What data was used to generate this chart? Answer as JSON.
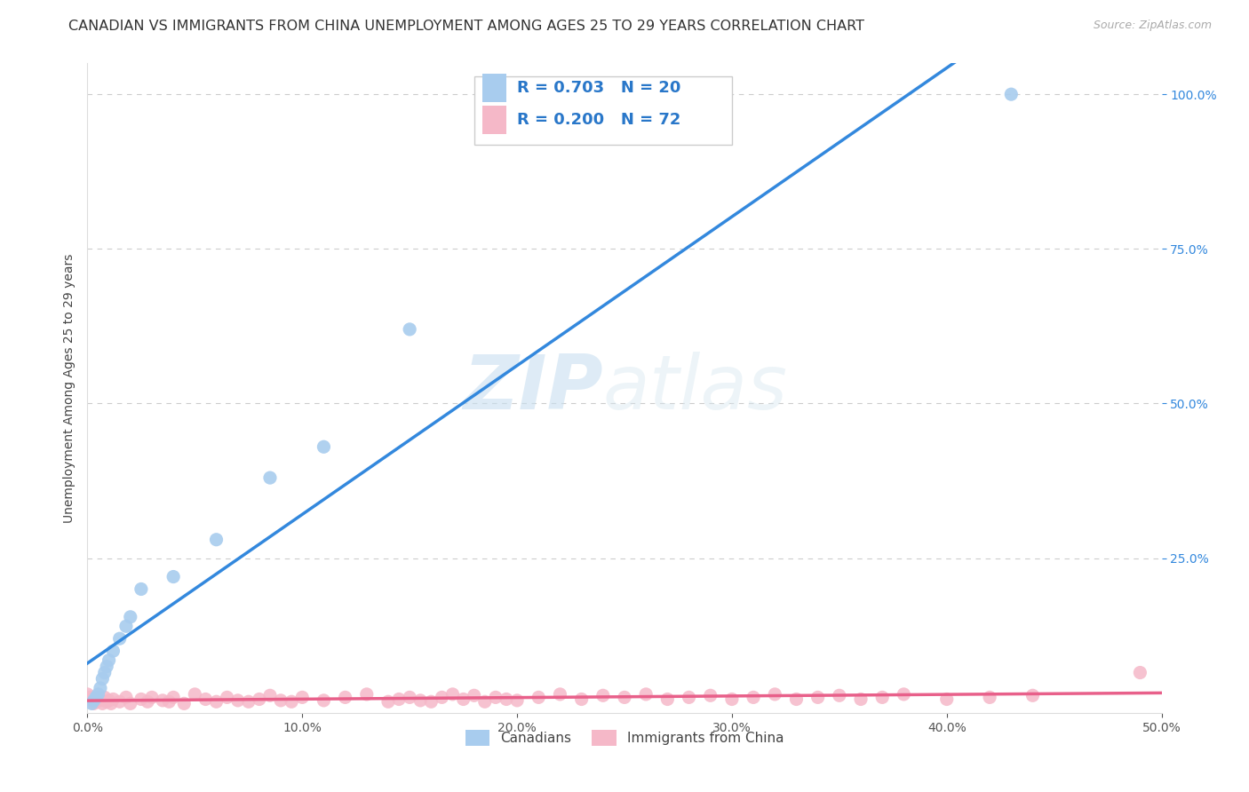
{
  "title": "CANADIAN VS IMMIGRANTS FROM CHINA UNEMPLOYMENT AMONG AGES 25 TO 29 YEARS CORRELATION CHART",
  "source": "Source: ZipAtlas.com",
  "ylabel": "Unemployment Among Ages 25 to 29 years",
  "xlim": [
    0.0,
    0.5
  ],
  "ylim": [
    0.0,
    1.05
  ],
  "xtick_vals": [
    0.0,
    0.1,
    0.2,
    0.3,
    0.4,
    0.5
  ],
  "ytick_vals": [
    0.25,
    0.5,
    0.75,
    1.0
  ],
  "canadians_x": [
    0.002,
    0.003,
    0.004,
    0.005,
    0.006,
    0.007,
    0.008,
    0.009,
    0.01,
    0.012,
    0.015,
    0.018,
    0.02,
    0.025,
    0.04,
    0.06,
    0.085,
    0.11,
    0.15,
    0.43
  ],
  "canadians_y": [
    0.015,
    0.02,
    0.025,
    0.03,
    0.04,
    0.055,
    0.065,
    0.075,
    0.085,
    0.1,
    0.12,
    0.14,
    0.155,
    0.2,
    0.22,
    0.28,
    0.38,
    0.43,
    0.62,
    1.0
  ],
  "china_x": [
    0.0,
    0.001,
    0.002,
    0.003,
    0.004,
    0.005,
    0.006,
    0.007,
    0.008,
    0.009,
    0.01,
    0.011,
    0.012,
    0.015,
    0.018,
    0.02,
    0.025,
    0.028,
    0.03,
    0.035,
    0.038,
    0.04,
    0.045,
    0.05,
    0.055,
    0.06,
    0.065,
    0.07,
    0.075,
    0.08,
    0.085,
    0.09,
    0.095,
    0.1,
    0.11,
    0.12,
    0.13,
    0.14,
    0.145,
    0.15,
    0.155,
    0.16,
    0.165,
    0.17,
    0.175,
    0.18,
    0.185,
    0.19,
    0.195,
    0.2,
    0.21,
    0.22,
    0.23,
    0.24,
    0.25,
    0.26,
    0.27,
    0.28,
    0.29,
    0.3,
    0.31,
    0.32,
    0.33,
    0.34,
    0.35,
    0.36,
    0.37,
    0.38,
    0.4,
    0.42,
    0.44,
    0.49
  ],
  "china_y": [
    0.03,
    0.025,
    0.02,
    0.015,
    0.018,
    0.025,
    0.02,
    0.015,
    0.025,
    0.018,
    0.02,
    0.015,
    0.022,
    0.018,
    0.025,
    0.015,
    0.022,
    0.018,
    0.025,
    0.02,
    0.018,
    0.025,
    0.015,
    0.03,
    0.022,
    0.018,
    0.025,
    0.02,
    0.018,
    0.022,
    0.028,
    0.02,
    0.018,
    0.025,
    0.02,
    0.025,
    0.03,
    0.018,
    0.022,
    0.025,
    0.02,
    0.018,
    0.025,
    0.03,
    0.022,
    0.028,
    0.018,
    0.025,
    0.022,
    0.02,
    0.025,
    0.03,
    0.022,
    0.028,
    0.025,
    0.03,
    0.022,
    0.025,
    0.028,
    0.022,
    0.025,
    0.03,
    0.022,
    0.025,
    0.028,
    0.022,
    0.025,
    0.03,
    0.022,
    0.025,
    0.028,
    0.065
  ],
  "canadian_color": "#a8ccee",
  "china_color": "#f5b8c8",
  "canadian_line_color": "#3388dd",
  "china_line_color": "#e8608a",
  "canadian_R": 0.703,
  "canadian_N": 20,
  "china_R": 0.2,
  "china_N": 72,
  "legend_label_canadian": "Canadians",
  "legend_label_china": "Immigrants from China",
  "watermark_zip": "ZIP",
  "watermark_atlas": "atlas",
  "background_color": "#ffffff",
  "grid_color": "#cccccc",
  "title_fontsize": 11.5,
  "label_fontsize": 10,
  "tick_fontsize": 10,
  "stat_color": "#2977c9",
  "stat_fontsize": 13
}
